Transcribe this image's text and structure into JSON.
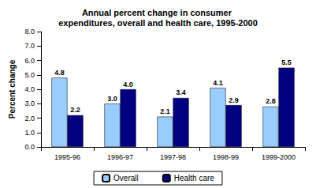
{
  "chart_data": {
    "type": "bar",
    "title": "Annual percent change in consumer expenditures, overall and health care, 1995-2000",
    "y_label": "Percent change",
    "categories": [
      "1995-96",
      "1996-97",
      "1997-98",
      "1998-99",
      "1999-2000"
    ],
    "series": [
      {
        "name": "Overall",
        "color": "#99ccff",
        "values": [
          4.8,
          3.0,
          2.1,
          4.1,
          2.8
        ],
        "value_labels": [
          "4.8",
          "3.0",
          "2.1",
          "4.1",
          "2.8"
        ]
      },
      {
        "name": "Health care",
        "color": "#000080",
        "values": [
          2.2,
          4.0,
          3.4,
          2.9,
          5.5
        ],
        "value_labels": [
          "2.2",
          "4.0",
          "3.4",
          "2.9",
          "5.5"
        ]
      }
    ],
    "ylim": [
      0,
      8
    ],
    "yticks": [
      {
        "value": 0,
        "label": "0.0"
      },
      {
        "value": 1,
        "label": "1.0"
      },
      {
        "value": 2,
        "label": "2.0"
      },
      {
        "value": 3,
        "label": "3.0"
      },
      {
        "value": 4,
        "label": "4.0"
      },
      {
        "value": 5,
        "label": "5.0"
      },
      {
        "value": 6,
        "label": "6.0"
      },
      {
        "value": 7,
        "label": "7.0"
      },
      {
        "value": 8,
        "label": "8.0"
      }
    ],
    "grid": false,
    "legend": "bottom",
    "data_labels": true
  }
}
